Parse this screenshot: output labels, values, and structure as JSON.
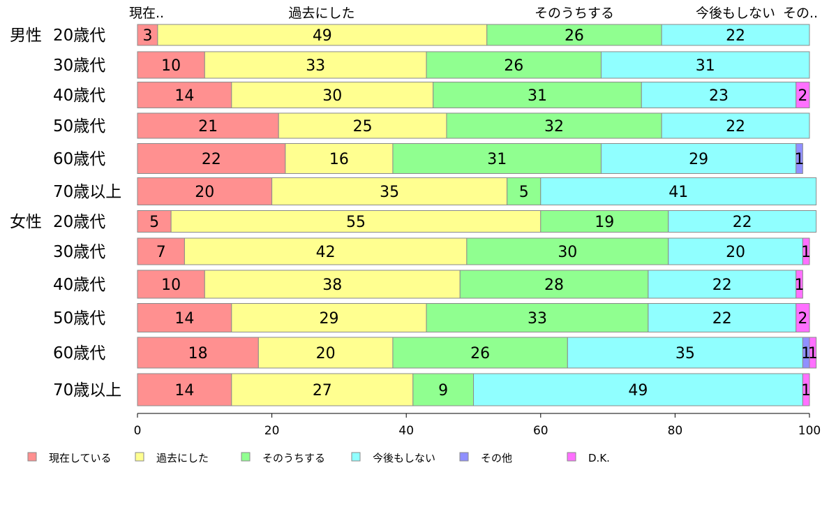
{
  "chart_data": {
    "type": "bar",
    "orientation": "horizontal",
    "stacked": true,
    "xlim": [
      0,
      100
    ],
    "xticks": [
      "0",
      "20",
      "40",
      "60",
      "80",
      "100"
    ],
    "column_headers": [
      "現在..",
      "過去にした",
      "そのうちする",
      "今後もしない",
      "その..",
      ""
    ],
    "groups": [
      {
        "label": "男性",
        "first_index": 0
      },
      {
        "label": "女性",
        "first_index": 6
      }
    ],
    "categories": [
      "20歳代",
      "30歳代",
      "40歳代",
      "50歳代",
      "60歳代",
      "70歳以上",
      "20歳代",
      "30歳代",
      "40歳代",
      "50歳代",
      "60歳代",
      "70歳以上"
    ],
    "series": [
      {
        "name": "現在している",
        "color": "#ff9090",
        "values": [
          3,
          10,
          14,
          21,
          22,
          20,
          5,
          7,
          10,
          14,
          18,
          14
        ]
      },
      {
        "name": "過去にした",
        "color": "#ffff90",
        "values": [
          49,
          33,
          30,
          25,
          16,
          35,
          55,
          42,
          38,
          29,
          20,
          27
        ]
      },
      {
        "name": "そのうちする",
        "color": "#90ff90",
        "values": [
          26,
          26,
          31,
          32,
          31,
          5,
          19,
          30,
          28,
          33,
          26,
          9
        ]
      },
      {
        "name": "今後もしない",
        "color": "#90ffff",
        "values": [
          22,
          31,
          23,
          22,
          29,
          41,
          22,
          20,
          22,
          22,
          35,
          49
        ]
      },
      {
        "name": "その他",
        "color": "#9090ff",
        "values": [
          0,
          0,
          0,
          0,
          1,
          0,
          0,
          0,
          0,
          0,
          1,
          0
        ]
      },
      {
        "name": "D.K.",
        "color": "#ff70ff",
        "values": [
          0,
          0,
          2,
          0,
          0,
          0,
          0,
          1,
          1,
          2,
          1,
          1
        ]
      }
    ],
    "legend_position": "bottom",
    "grid": false
  }
}
